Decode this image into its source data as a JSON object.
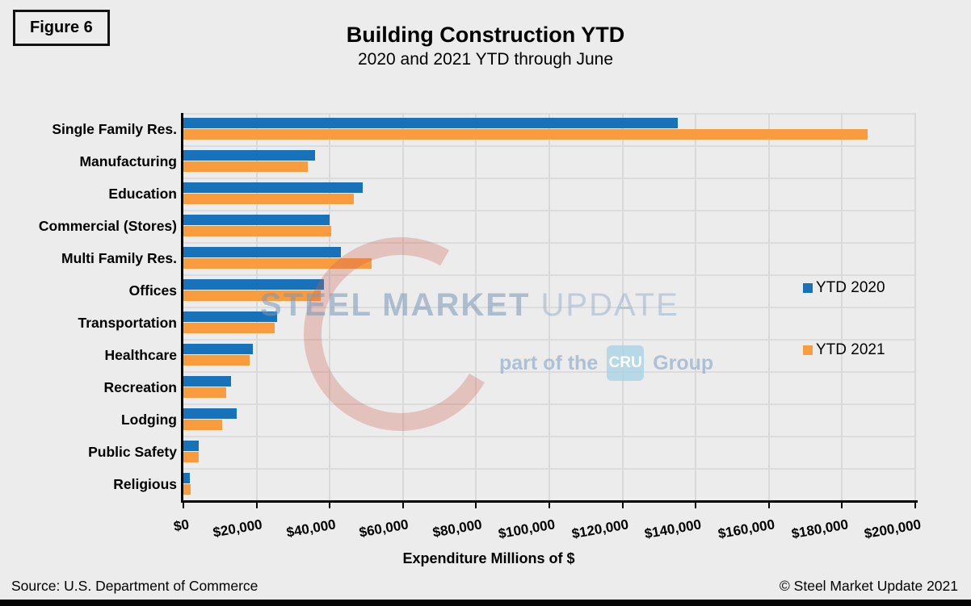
{
  "figure_label": "Figure 6",
  "title": "Building Construction YTD",
  "subtitle": "2020 and 2021 YTD through June",
  "x_axis_title": "Expenditure Millions of $",
  "footer": {
    "source": "Source: U.S. Department of Commerce",
    "copyright": "© Steel Market Update 2021"
  },
  "legend": [
    {
      "label": "YTD 2020",
      "color": "#1772B9"
    },
    {
      "label": "YTD 2021",
      "color": "#F89C3F"
    }
  ],
  "watermark": {
    "line1_primary": "STEEL MARKET",
    "line1_secondary": "UPDATE",
    "line2_prefix": "part of the",
    "line2_box": "CRU",
    "line2_suffix": "Group"
  },
  "colors": {
    "background": "#ECECEC",
    "gridline": "#D9D9D9",
    "axis": "#000000",
    "series_2020": "#1772B9",
    "series_2021": "#F89C3F"
  },
  "chart_data": {
    "type": "bar",
    "orientation": "horizontal",
    "title": "Building Construction YTD",
    "subtitle": "2020 and 2021 YTD through June",
    "xlabel": "Expenditure Millions of $",
    "ylabel": "",
    "xlim": [
      0,
      200000
    ],
    "grid": true,
    "legend_position": "right",
    "categories": [
      "Single Family Res.",
      "Manufacturing",
      "Education",
      "Commercial (Stores)",
      "Multi Family Res.",
      "Offices",
      "Transportation",
      "Healthcare",
      "Recreation",
      "Lodging",
      "Public Safety",
      "Religious"
    ],
    "series": [
      {
        "name": "YTD 2020",
        "color": "#1772B9",
        "values": [
          135000,
          36000,
          49000,
          40000,
          43000,
          38500,
          25500,
          19000,
          13000,
          14500,
          4300,
          1700
        ]
      },
      {
        "name": "YTD 2021",
        "color": "#F89C3F",
        "values": [
          187000,
          34000,
          46500,
          40500,
          51500,
          37500,
          25000,
          18000,
          11700,
          10500,
          4200,
          1900
        ]
      }
    ],
    "xticks": [
      0,
      20000,
      40000,
      60000,
      80000,
      100000,
      120000,
      140000,
      160000,
      180000,
      200000
    ],
    "xtick_labels": [
      "$0",
      "$20,000",
      "$40,000",
      "$60,000",
      "$80,000",
      "$100,000",
      "$120,000",
      "$140,000",
      "$160,000",
      "$180,000",
      "$200,000"
    ]
  }
}
